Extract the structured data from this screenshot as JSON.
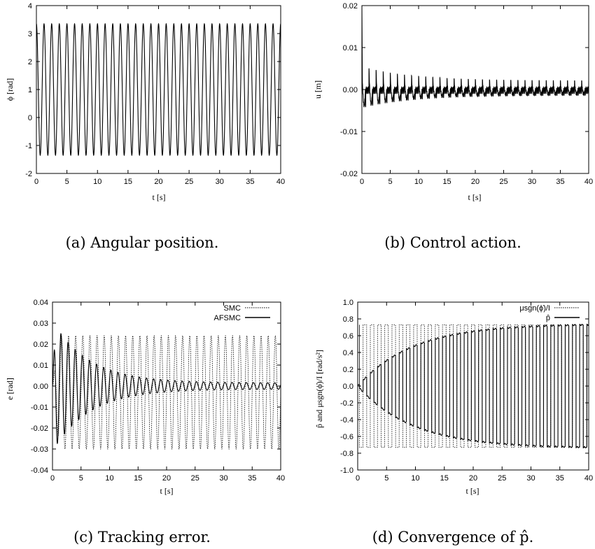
{
  "chart_data": [
    {
      "type": "line",
      "caption": "(a) Angular position.",
      "xlabel": "t [s]",
      "ylabel": "ϕ [rad]",
      "xlim": [
        0,
        40
      ],
      "ylim": [
        -2,
        4
      ],
      "xticks": [
        "0",
        "5",
        "10",
        "15",
        "20",
        "25",
        "30",
        "35",
        "40"
      ],
      "yticks": [
        "4",
        "3",
        "2",
        "1",
        "0",
        "-1",
        "-2"
      ],
      "grid": false,
      "legend": "none",
      "series": [
        {
          "kind": "sine",
          "center": 1.0,
          "amplitude": 2.35,
          "cycles": 32,
          "phase_start": "max"
        }
      ]
    },
    {
      "type": "line",
      "caption": "(b) Control action.",
      "xlabel": "t [s]",
      "ylabel": "u [m]",
      "xlim": [
        0,
        40
      ],
      "ylim": [
        -0.02,
        0.02
      ],
      "xticks": [
        "0",
        "5",
        "10",
        "15",
        "20",
        "25",
        "30",
        "35",
        "40"
      ],
      "yticks": [
        "0.02",
        "0.01",
        "0.00",
        "-0.01",
        "-0.02"
      ],
      "grid": false,
      "legend": "none",
      "series": [
        {
          "kind": "decaying-spiky",
          "initial_peak": 0.02,
          "upper_start": 0.0055,
          "upper_end": 0.002,
          "lower_start": -0.004,
          "lower_end": -0.001,
          "cycles": 32
        }
      ]
    },
    {
      "type": "line",
      "caption": "(c) Tracking error.",
      "xlabel": "t [s]",
      "ylabel": "e [rad]",
      "xlim": [
        0,
        40
      ],
      "ylim": [
        -0.04,
        0.04
      ],
      "xticks": [
        "0",
        "5",
        "10",
        "15",
        "20",
        "25",
        "30",
        "35",
        "40"
      ],
      "yticks": [
        "0.04",
        "0.03",
        "0.02",
        "0.01",
        "0.00",
        "-0.01",
        "-0.02",
        "-0.03",
        "-0.04"
      ],
      "grid": false,
      "legend": "top-right",
      "series": [
        {
          "name": "SMC",
          "style": "dotted",
          "kind": "oscillation",
          "upper": 0.024,
          "lower": -0.03,
          "cycles": 32
        },
        {
          "name": "AFSMC",
          "style": "solid",
          "kind": "decaying",
          "upper_start": 0.028,
          "lower_start": -0.031,
          "final_amplitude": 0.0015,
          "cycles": 32
        }
      ]
    },
    {
      "type": "line",
      "caption": "(d) Convergence of p̂.",
      "xlabel": "t [s]",
      "ylabel": "p̂ and μsgn(ϕ̇)/I [rad/s²]",
      "xlim": [
        0,
        40
      ],
      "ylim": [
        -1.0,
        1.0
      ],
      "xticks": [
        "0",
        "5",
        "10",
        "15",
        "20",
        "25",
        "30",
        "35",
        "40"
      ],
      "yticks": [
        "1.0",
        "0.8",
        "0.6",
        "0.4",
        "0.2",
        "0.0",
        "-0.2",
        "-0.4",
        "-0.6",
        "-0.8",
        "-1.0"
      ],
      "grid": false,
      "legend": "top-right",
      "series": [
        {
          "name": "μsgn(ϕ̇)/I",
          "style": "dotted",
          "kind": "square-wave",
          "amplitude": 0.73,
          "cycles": 32
        },
        {
          "name": "p̂",
          "style": "solid",
          "kind": "growing-envelope",
          "final_amplitude": 0.73,
          "cycles": 32
        }
      ]
    }
  ]
}
